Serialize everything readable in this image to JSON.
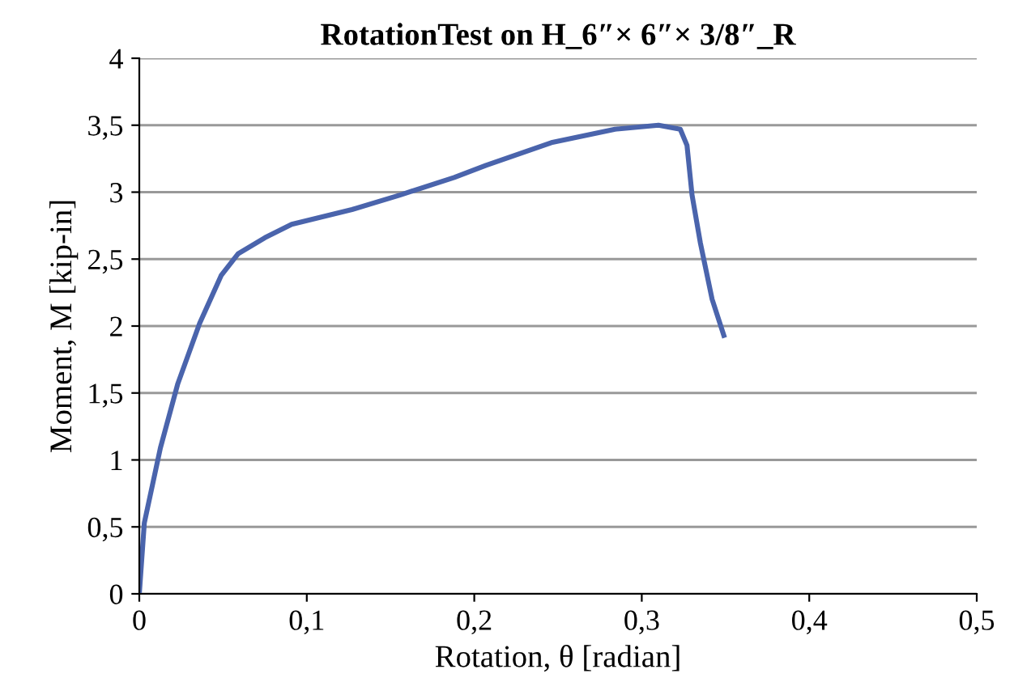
{
  "chart_data": {
    "type": "line",
    "title": "RotationTest on H_6″× 6″× 3/8″_R",
    "xlabel": "Rotation, θ [radian]",
    "ylabel": "Moment, M [kip-in]",
    "series": [
      {
        "color": "#4a64ac",
        "x": [
          0,
          0.003,
          0.0126,
          0.023,
          0.036,
          0.049,
          0.059,
          0.075,
          0.091,
          0.127,
          0.156,
          0.188,
          0.207,
          0.246,
          0.284,
          0.31,
          0.323,
          0.327,
          0.33,
          0.335,
          0.342,
          0.349
        ],
        "values": [
          0,
          0.53,
          1.09,
          1.57,
          2.02,
          2.38,
          2.54,
          2.66,
          2.76,
          2.87,
          2.98,
          3.11,
          3.2,
          3.37,
          3.47,
          3.5,
          3.47,
          3.35,
          2.98,
          2.62,
          2.2,
          1.93
        ]
      }
    ],
    "xlim": [
      0,
      0.5
    ],
    "ylim": [
      0,
      4
    ],
    "xticks": [
      {
        "value": 0,
        "label": "0"
      },
      {
        "value": 0.1,
        "label": "0,1"
      },
      {
        "value": 0.2,
        "label": "0,2"
      },
      {
        "value": 0.3,
        "label": "0,3"
      },
      {
        "value": 0.4,
        "label": "0,4"
      },
      {
        "value": 0.5,
        "label": "0,5"
      }
    ],
    "yticks": [
      {
        "value": 0,
        "label": "0"
      },
      {
        "value": 0.5,
        "label": "0,5"
      },
      {
        "value": 1,
        "label": "1"
      },
      {
        "value": 1.5,
        "label": "1,5"
      },
      {
        "value": 2,
        "label": "2"
      },
      {
        "value": 2.5,
        "label": "2,5"
      },
      {
        "value": 3,
        "label": "3"
      },
      {
        "value": 3.5,
        "label": "3,5"
      },
      {
        "value": 4,
        "label": "4"
      }
    ],
    "grid": "y",
    "legend": false,
    "marker": "none",
    "line_style": "solid"
  }
}
